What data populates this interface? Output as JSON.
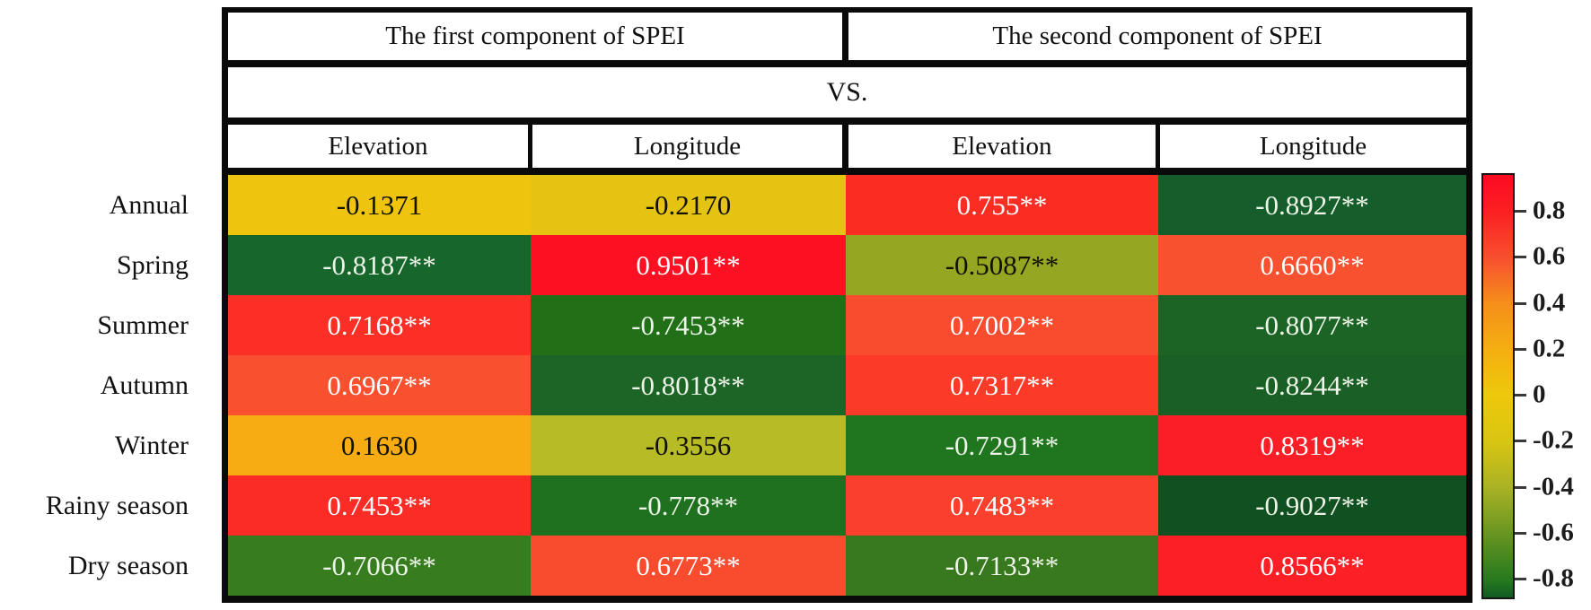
{
  "figure": {
    "description_visible_text_only": true
  },
  "chart_data": {
    "type": "heatmap",
    "column_groups": [
      "The first component of SPEI",
      "The second component of SPEI"
    ],
    "vs_label": "VS.",
    "columns": [
      "Elevation",
      "Longitude",
      "Elevation",
      "Longitude"
    ],
    "rows": [
      "Annual",
      "Spring",
      "Summer",
      "Autumn",
      "Winter",
      "Rainy season",
      "Dry season"
    ],
    "values": [
      [
        -0.1371,
        -0.217,
        0.755,
        -0.8927
      ],
      [
        -0.8187,
        0.9501,
        -0.5087,
        0.666
      ],
      [
        0.7168,
        -0.7453,
        0.7002,
        -0.8077
      ],
      [
        0.6967,
        -0.8018,
        0.7317,
        -0.8244
      ],
      [
        0.163,
        -0.3556,
        -0.7291,
        0.8319
      ],
      [
        0.7453,
        -0.778,
        0.7483,
        -0.9027
      ],
      [
        -0.7066,
        0.6773,
        -0.7133,
        0.8566
      ]
    ],
    "cells": [
      [
        {
          "label": "-0.1371",
          "bg": "#eec40e",
          "fg": "#111100"
        },
        {
          "label": "-0.2170",
          "bg": "#e5c312",
          "fg": "#111100"
        },
        {
          "label": "0.755**",
          "bg": "#fb2d23",
          "fg": "#ffffff"
        },
        {
          "label": "-0.8927**",
          "bg": "#155e2b",
          "fg": "#edf5e8"
        }
      ],
      [
        {
          "label": "-0.8187**",
          "bg": "#17672d",
          "fg": "#edf5e8"
        },
        {
          "label": "0.9501**",
          "bg": "#fc1022",
          "fg": "#ffffff"
        },
        {
          "label": "-0.5087**",
          "bg": "#95a622",
          "fg": "#111100"
        },
        {
          "label": "0.6660**",
          "bg": "#f85130",
          "fg": "#ffffff"
        }
      ],
      [
        {
          "label": "0.7168**",
          "bg": "#fb2f26",
          "fg": "#ffffff"
        },
        {
          "label": "-0.7453**",
          "bg": "#217018",
          "fg": "#edf5e8"
        },
        {
          "label": "0.7002**",
          "bg": "#f94b2e",
          "fg": "#ffffff"
        },
        {
          "label": "-0.8077**",
          "bg": "#1c6425",
          "fg": "#edf5e8"
        }
      ],
      [
        {
          "label": "0.6967**",
          "bg": "#f95130",
          "fg": "#ffffff"
        },
        {
          "label": "-0.8018**",
          "bg": "#1d6527",
          "fg": "#edf5e8"
        },
        {
          "label": "0.7317**",
          "bg": "#fb3b28",
          "fg": "#ffffff"
        },
        {
          "label": "-0.8244**",
          "bg": "#1a5f25",
          "fg": "#edf5e8"
        }
      ],
      [
        {
          "label": "0.1630",
          "bg": "#f6ac12",
          "fg": "#111100"
        },
        {
          "label": "-0.3556",
          "bg": "#b6bb26",
          "fg": "#111100"
        },
        {
          "label": "-0.7291**",
          "bg": "#20761f",
          "fg": "#edf5e8"
        },
        {
          "label": "0.8319**",
          "bg": "#fc1e26",
          "fg": "#ffffff"
        }
      ],
      [
        {
          "label": "0.7453**",
          "bg": "#fb2c26",
          "fg": "#ffffff"
        },
        {
          "label": "-0.778**",
          "bg": "#1f7120",
          "fg": "#edf5e8"
        },
        {
          "label": "0.7483**",
          "bg": "#fa402c",
          "fg": "#ffffff"
        },
        {
          "label": "-0.9027**",
          "bg": "#115020",
          "fg": "#edf5e8"
        }
      ],
      [
        {
          "label": "-0.7066**",
          "bg": "#377d1f",
          "fg": "#edf5e8"
        },
        {
          "label": "0.6773**",
          "bg": "#f94c2e",
          "fg": "#ffffff"
        },
        {
          "label": "-0.7133**",
          "bg": "#38791f",
          "fg": "#edf5e8"
        },
        {
          "label": "0.8566**",
          "bg": "#fc1f26",
          "fg": "#ffffff"
        }
      ]
    ],
    "colorbar": {
      "ticks": [
        "0.8",
        "0.6",
        "0.4",
        "0.2",
        "0",
        "-0.2",
        "-0.4",
        "-0.6",
        "-0.8"
      ],
      "tick_values": [
        0.8,
        0.6,
        0.4,
        0.2,
        0,
        -0.2,
        -0.4,
        -0.6,
        -0.8
      ],
      "range_top": 0.96,
      "range_bottom": -0.92,
      "gradient": [
        {
          "pos": 0,
          "color": "#fc0a21"
        },
        {
          "pos": 9,
          "color": "#fb2022"
        },
        {
          "pos": 20,
          "color": "#f8512f"
        },
        {
          "pos": 30,
          "color": "#f58d1a"
        },
        {
          "pos": 41,
          "color": "#f4ae11"
        },
        {
          "pos": 52,
          "color": "#eec80b"
        },
        {
          "pos": 63,
          "color": "#d9c513"
        },
        {
          "pos": 74,
          "color": "#a9b224"
        },
        {
          "pos": 85,
          "color": "#689522"
        },
        {
          "pos": 96,
          "color": "#25791e"
        },
        {
          "pos": 100,
          "color": "#115a23"
        }
      ]
    },
    "legend_position": "right",
    "grid": false
  }
}
